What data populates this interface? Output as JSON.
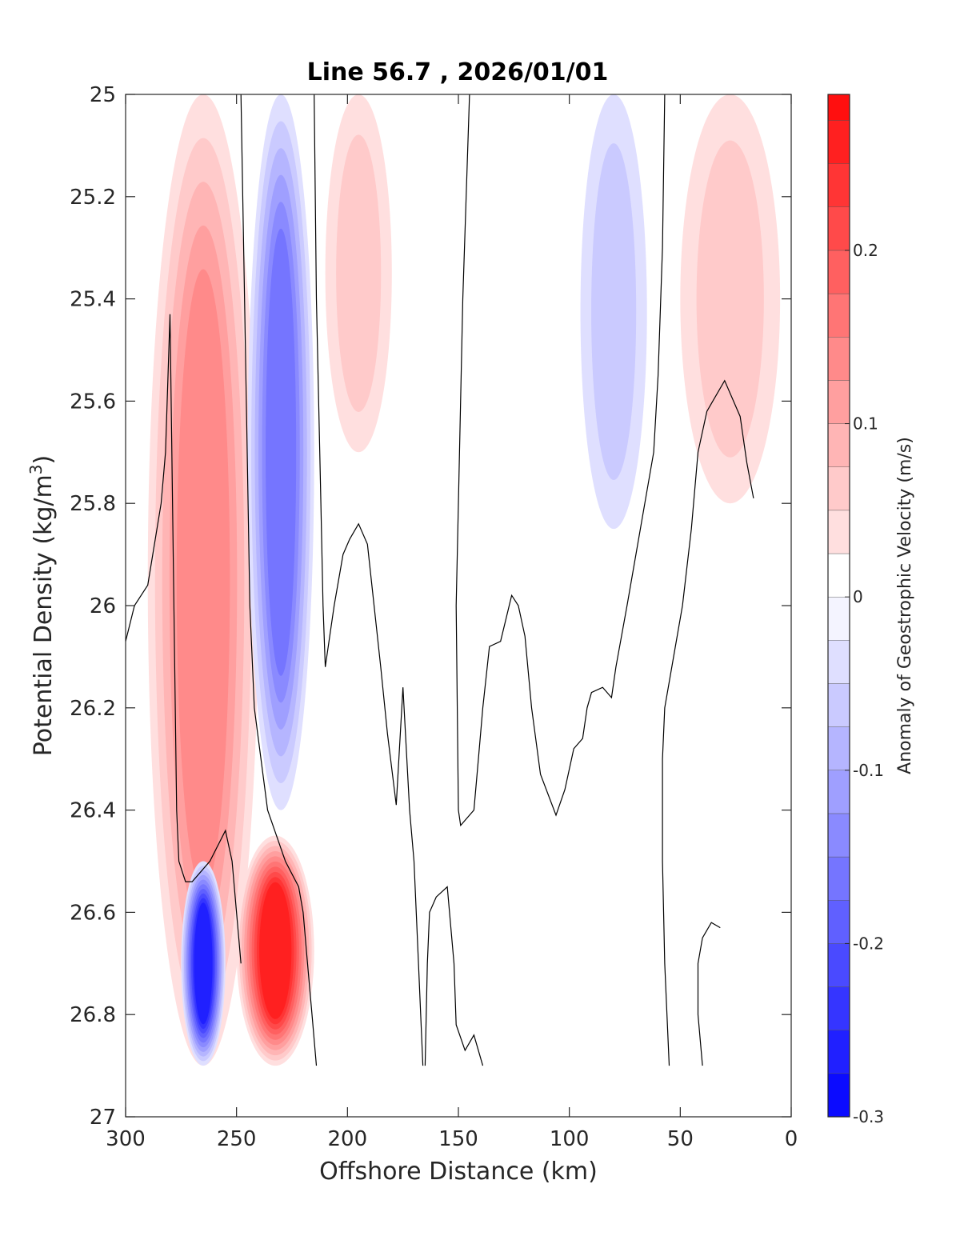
{
  "chart_data": {
    "type": "heatmap",
    "title": "Line 56.7 , 2026/01/01",
    "xlabel": "Offshore Distance (km)",
    "ylabel_main": "Potential Density (kg/m",
    "ylabel_sup": "3",
    "ylabel_close": ")",
    "xlim": [
      300,
      0
    ],
    "ylim": [
      25,
      27
    ],
    "x_reversed": true,
    "y_reversed": true,
    "x_ticks": [
      300,
      250,
      200,
      150,
      100,
      50,
      0
    ],
    "x_tick_labels": [
      "300",
      "250",
      "200",
      "150",
      "100",
      "50",
      "0"
    ],
    "y_ticks": [
      25,
      25.2,
      25.4,
      25.6,
      25.8,
      26,
      26.2,
      26.4,
      26.6,
      26.8,
      27
    ],
    "y_tick_labels": [
      "25",
      "25.2",
      "25.4",
      "25.6",
      "25.8",
      "26",
      "26.2",
      "26.4",
      "26.6",
      "26.8",
      "27"
    ],
    "colorbar": {
      "label": "Anomaly of Geostrophic Velocity (m/s)",
      "range": [
        -0.3,
        0.29
      ],
      "ticks": [
        -0.3,
        -0.2,
        -0.1,
        0,
        0.1,
        0.2
      ],
      "tick_labels": [
        "-0.3",
        "-0.2",
        "-0.1",
        "0",
        "0.1",
        "0.2"
      ],
      "level_step": 0.025,
      "colormap": "blue-white-red",
      "neg_color": "#0000ff",
      "pos_color": "#ff0000"
    },
    "grid": false,
    "anomaly_regions": [
      {
        "name": "positive jet",
        "x": [
          290,
          240
        ],
        "y": [
          25,
          26.9
        ],
        "peak": 0.13,
        "sign": "positive"
      },
      {
        "name": "negative jet",
        "x": [
          245,
          215
        ],
        "y": [
          25,
          26.4
        ],
        "peak": -0.16,
        "sign": "negative"
      },
      {
        "name": "deep positive core",
        "x": [
          250,
          215
        ],
        "y": [
          26.45,
          26.9
        ],
        "peak": 0.25,
        "sign": "positive"
      },
      {
        "name": "deep negative core",
        "x": [
          275,
          255
        ],
        "y": [
          26.5,
          26.9
        ],
        "peak": -0.27,
        "sign": "negative"
      },
      {
        "name": "offshore surface positive",
        "x": [
          210,
          180
        ],
        "y": [
          25,
          25.7
        ],
        "peak": 0.06,
        "sign": "positive"
      },
      {
        "name": "mid negative",
        "x": [
          95,
          65
        ],
        "y": [
          25,
          25.85
        ],
        "peak": -0.07,
        "sign": "negative"
      },
      {
        "name": "nearshore positive",
        "x": [
          50,
          5
        ],
        "y": [
          25,
          25.8
        ],
        "peak": 0.05,
        "sign": "positive"
      }
    ],
    "zero_contours": [
      {
        "points": [
          [
            300,
            26.07
          ],
          [
            296,
            26.0
          ],
          [
            290,
            25.96
          ],
          [
            284,
            25.8
          ],
          [
            282,
            25.7
          ],
          [
            280,
            25.43
          ],
          [
            277,
            26.4
          ],
          [
            276,
            26.5
          ],
          [
            273,
            26.54
          ],
          [
            270,
            26.54
          ],
          [
            262,
            26.5
          ],
          [
            255,
            26.44
          ],
          [
            252,
            26.5
          ],
          [
            248,
            26.7
          ]
        ]
      },
      {
        "points": [
          [
            248,
            25.0
          ],
          [
            246,
            25.5
          ],
          [
            244,
            26.0
          ],
          [
            242,
            26.2
          ],
          [
            236,
            26.4
          ],
          [
            228,
            26.5
          ],
          [
            222,
            26.55
          ],
          [
            220,
            26.6
          ],
          [
            218,
            26.7
          ],
          [
            216,
            26.8
          ],
          [
            214,
            26.9
          ]
        ]
      },
      {
        "points": [
          [
            215,
            25.0
          ],
          [
            214,
            25.4
          ],
          [
            212,
            25.8
          ],
          [
            211,
            26.0
          ],
          [
            210,
            26.12
          ],
          [
            206,
            26.0
          ],
          [
            202,
            25.9
          ],
          [
            199,
            25.87
          ],
          [
            195,
            25.84
          ],
          [
            191,
            25.88
          ],
          [
            188,
            26.0
          ],
          [
            185,
            26.12
          ],
          [
            182,
            26.25
          ],
          [
            178,
            26.39
          ],
          [
            175,
            26.16
          ],
          [
            172,
            26.4
          ],
          [
            170,
            26.5
          ],
          [
            168,
            26.7
          ],
          [
            166,
            26.9
          ]
        ]
      },
      {
        "points": [
          [
            145,
            25.0
          ],
          [
            148,
            25.4
          ],
          [
            150,
            25.8
          ],
          [
            151,
            26.0
          ],
          [
            150,
            26.4
          ],
          [
            149,
            26.43
          ],
          [
            143,
            26.4
          ],
          [
            141,
            26.3
          ],
          [
            139,
            26.2
          ],
          [
            136,
            26.08
          ],
          [
            131,
            26.07
          ],
          [
            126,
            25.98
          ],
          [
            123,
            26.0
          ],
          [
            120,
            26.06
          ],
          [
            117,
            26.2
          ],
          [
            113,
            26.33
          ],
          [
            106,
            26.41
          ],
          [
            102,
            26.36
          ],
          [
            98,
            26.28
          ],
          [
            94,
            26.26
          ],
          [
            92,
            26.2
          ],
          [
            90,
            26.17
          ],
          [
            85,
            26.16
          ],
          [
            81,
            26.18
          ],
          [
            79,
            26.12
          ],
          [
            74,
            26.0
          ],
          [
            70,
            25.9
          ],
          [
            66,
            25.8
          ],
          [
            62,
            25.7
          ],
          [
            60,
            25.55
          ],
          [
            58,
            25.3
          ],
          [
            57,
            25.0
          ]
        ]
      },
      {
        "points": [
          [
            55,
            26.9
          ],
          [
            57,
            26.7
          ],
          [
            58,
            26.5
          ],
          [
            58,
            26.3
          ],
          [
            57,
            26.2
          ],
          [
            53,
            26.1
          ],
          [
            49,
            26.0
          ],
          [
            45,
            25.85
          ],
          [
            42,
            25.7
          ],
          [
            38,
            25.62
          ],
          [
            30,
            25.56
          ],
          [
            23,
            25.63
          ],
          [
            20,
            25.72
          ],
          [
            17,
            25.79
          ]
        ]
      },
      {
        "points": [
          [
            165,
            26.9
          ],
          [
            164,
            26.7
          ],
          [
            163,
            26.6
          ],
          [
            160,
            26.57
          ],
          [
            155,
            26.55
          ],
          [
            152,
            26.7
          ],
          [
            151,
            26.82
          ],
          [
            147,
            26.87
          ],
          [
            143,
            26.84
          ],
          [
            139,
            26.9
          ]
        ]
      },
      {
        "points": [
          [
            40,
            26.9
          ],
          [
            42,
            26.8
          ],
          [
            42,
            26.7
          ],
          [
            40,
            26.65
          ],
          [
            36,
            26.62
          ],
          [
            32,
            26.63
          ]
        ]
      }
    ]
  }
}
